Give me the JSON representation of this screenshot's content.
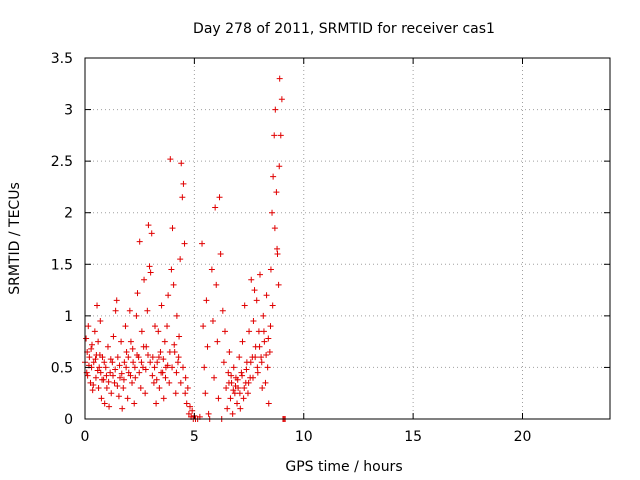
{
  "chart_data": {
    "type": "scatter",
    "title": "Day 278 of 2011, SRMTID for receiver cas1",
    "xlabel": "GPS time / hours",
    "ylabel": "SRMTID / TECUs",
    "xlim": [
      0,
      24
    ],
    "ylim": [
      0,
      3.5
    ],
    "x_ticks": [
      0,
      5,
      10,
      15,
      20
    ],
    "x_tick_labels": [
      "0",
      "5",
      "10",
      "15",
      "20"
    ],
    "y_ticks": [
      0,
      0.5,
      1,
      1.5,
      2,
      2.5,
      3,
      3.5
    ],
    "y_tick_labels": [
      "0",
      "0.5",
      "1",
      "1.5",
      "2",
      "2.5",
      "3",
      "3.5"
    ],
    "grid": true,
    "marker": "plus",
    "color": "#e00000",
    "series": [
      {
        "name": "SRMTID",
        "points": [
          [
            0.0,
            0.55
          ],
          [
            0.05,
            0.78
          ],
          [
            0.1,
            0.65
          ],
          [
            0.12,
            0.42
          ],
          [
            0.15,
            0.9
          ],
          [
            0.2,
            0.6
          ],
          [
            0.25,
            0.35
          ],
          [
            0.3,
            0.5
          ],
          [
            0.32,
            0.72
          ],
          [
            0.35,
            0.28
          ],
          [
            0.4,
            0.55
          ],
          [
            0.45,
            0.85
          ],
          [
            0.5,
            0.4
          ],
          [
            0.52,
            0.62
          ],
          [
            0.55,
            1.1
          ],
          [
            0.6,
            0.75
          ],
          [
            0.62,
            0.3
          ],
          [
            0.65,
            0.5
          ],
          [
            0.7,
            0.95
          ],
          [
            0.72,
            0.45
          ],
          [
            0.75,
            0.2
          ],
          [
            0.8,
            0.6
          ],
          [
            0.85,
            0.38
          ],
          [
            0.9,
            0.15
          ],
          [
            0.95,
            0.5
          ],
          [
            1.0,
            0.3
          ],
          [
            1.05,
            0.7
          ],
          [
            1.1,
            0.12
          ],
          [
            1.15,
            0.45
          ],
          [
            1.2,
            0.25
          ],
          [
            1.25,
            0.55
          ],
          [
            1.3,
            0.8
          ],
          [
            1.35,
            0.35
          ],
          [
            1.4,
            1.05
          ],
          [
            1.45,
            1.15
          ],
          [
            1.5,
            0.6
          ],
          [
            1.55,
            0.22
          ],
          [
            1.6,
            0.4
          ],
          [
            1.65,
            0.75
          ],
          [
            1.7,
            0.1
          ],
          [
            1.75,
            0.3
          ],
          [
            1.8,
            0.55
          ],
          [
            1.85,
            0.9
          ],
          [
            1.9,
            0.65
          ],
          [
            1.95,
            0.2
          ],
          [
            2.0,
            0.45
          ],
          [
            2.05,
            1.05
          ],
          [
            2.1,
            0.75
          ],
          [
            2.15,
            0.35
          ],
          [
            2.2,
            0.55
          ],
          [
            2.25,
            0.15
          ],
          [
            2.3,
            0.4
          ],
          [
            2.35,
            1.0
          ],
          [
            2.4,
            1.22
          ],
          [
            2.45,
            0.6
          ],
          [
            2.5,
            1.72
          ],
          [
            2.55,
            0.3
          ],
          [
            2.6,
            0.85
          ],
          [
            2.65,
            0.5
          ],
          [
            2.7,
            1.35
          ],
          [
            2.75,
            0.25
          ],
          [
            2.8,
            0.7
          ],
          [
            2.85,
            1.05
          ],
          [
            2.9,
            1.88
          ],
          [
            2.95,
            1.48
          ],
          [
            3.0,
            1.42
          ],
          [
            3.05,
            1.8
          ],
          [
            3.1,
            0.6
          ],
          [
            3.15,
            0.35
          ],
          [
            3.2,
            0.9
          ],
          [
            3.25,
            0.15
          ],
          [
            3.3,
            0.55
          ],
          [
            3.35,
            0.85
          ],
          [
            3.4,
            0.3
          ],
          [
            3.45,
            0.65
          ],
          [
            3.5,
            1.1
          ],
          [
            3.55,
            0.45
          ],
          [
            3.6,
            0.2
          ],
          [
            3.65,
            0.75
          ],
          [
            3.7,
            0.5
          ],
          [
            3.75,
            0.9
          ],
          [
            3.8,
            1.2
          ],
          [
            3.85,
            0.35
          ],
          [
            3.9,
            2.52
          ],
          [
            3.95,
            1.45
          ],
          [
            4.0,
            1.85
          ],
          [
            4.05,
            1.3
          ],
          [
            4.1,
            0.65
          ],
          [
            4.15,
            0.25
          ],
          [
            4.2,
            1.0
          ],
          [
            4.25,
            0.55
          ],
          [
            4.3,
            0.8
          ],
          [
            4.35,
            1.55
          ],
          [
            4.4,
            2.48
          ],
          [
            4.45,
            2.15
          ],
          [
            4.5,
            2.28
          ],
          [
            4.55,
            1.7
          ],
          [
            4.6,
            0.4
          ],
          [
            4.65,
            0.15
          ],
          [
            4.7,
            0.3
          ],
          [
            4.75,
            0.05
          ],
          [
            4.8,
            0.12
          ],
          [
            4.85,
            0.02
          ],
          [
            4.9,
            0.08
          ],
          [
            4.95,
            0.0
          ],
          [
            5.0,
            0.03
          ],
          [
            5.05,
            0.0
          ],
          [
            5.15,
            0.0
          ],
          [
            5.25,
            0.02
          ],
          [
            5.35,
            1.7
          ],
          [
            5.4,
            0.9
          ],
          [
            5.45,
            0.5
          ],
          [
            5.5,
            0.25
          ],
          [
            5.55,
            1.15
          ],
          [
            5.6,
            0.7
          ],
          [
            5.65,
            0.05
          ],
          [
            5.7,
            0.0
          ],
          [
            5.8,
            1.45
          ],
          [
            5.85,
            0.95
          ],
          [
            5.9,
            0.4
          ],
          [
            5.95,
            2.05
          ],
          [
            6.0,
            1.3
          ],
          [
            6.05,
            0.75
          ],
          [
            6.1,
            0.2
          ],
          [
            6.15,
            2.15
          ],
          [
            6.2,
            1.6
          ],
          [
            6.25,
            0.0
          ],
          [
            6.3,
            1.05
          ],
          [
            6.35,
            0.55
          ],
          [
            6.4,
            0.85
          ],
          [
            6.45,
            0.3
          ],
          [
            6.5,
            0.1
          ],
          [
            6.55,
            0.45
          ],
          [
            6.6,
            0.65
          ],
          [
            6.65,
            0.2
          ],
          [
            6.7,
            0.35
          ],
          [
            6.75,
            0.05
          ],
          [
            6.8,
            0.5
          ],
          [
            6.85,
            0.25
          ],
          [
            6.9,
            0.4
          ],
          [
            6.95,
            0.15
          ],
          [
            7.0,
            0.3
          ],
          [
            7.05,
            0.6
          ],
          [
            7.1,
            0.1
          ],
          [
            7.15,
            0.45
          ],
          [
            7.2,
            0.75
          ],
          [
            7.25,
            0.2
          ],
          [
            7.3,
            1.1
          ],
          [
            7.35,
            0.35
          ],
          [
            7.4,
            0.55
          ],
          [
            7.45,
            0.25
          ],
          [
            7.5,
            0.85
          ],
          [
            7.55,
            0.4
          ],
          [
            7.6,
            1.35
          ],
          [
            7.65,
            0.6
          ],
          [
            7.7,
            0.95
          ],
          [
            7.75,
            1.25
          ],
          [
            7.8,
            0.7
          ],
          [
            7.85,
            1.15
          ],
          [
            7.9,
            0.45
          ],
          [
            7.95,
            0.85
          ],
          [
            8.0,
            1.4
          ],
          [
            8.05,
            0.6
          ],
          [
            8.1,
            0.3
          ],
          [
            8.15,
            1.0
          ],
          [
            8.2,
            0.75
          ],
          [
            8.25,
            0.35
          ],
          [
            8.3,
            1.2
          ],
          [
            8.35,
            0.5
          ],
          [
            8.4,
            0.15
          ],
          [
            8.45,
            0.65
          ],
          [
            8.5,
            1.45
          ],
          [
            8.55,
            2.0
          ],
          [
            8.6,
            2.35
          ],
          [
            8.65,
            2.75
          ],
          [
            8.7,
            3.0
          ],
          [
            8.75,
            2.2
          ],
          [
            8.8,
            1.6
          ],
          [
            8.85,
            1.3
          ],
          [
            8.9,
            3.3
          ],
          [
            8.95,
            2.75
          ],
          [
            9.0,
            3.1
          ],
          [
            9.05,
            0.0
          ],
          [
            9.1,
            0.0
          ],
          [
            9.15,
            0.0
          ],
          [
            0.08,
            0.45
          ],
          [
            0.18,
            0.52
          ],
          [
            0.28,
            0.68
          ],
          [
            0.38,
            0.33
          ],
          [
            0.48,
            0.58
          ],
          [
            0.58,
            0.47
          ],
          [
            0.68,
            0.62
          ],
          [
            0.78,
            0.38
          ],
          [
            0.88,
            0.55
          ],
          [
            0.98,
            0.42
          ],
          [
            1.08,
            0.36
          ],
          [
            1.18,
            0.58
          ],
          [
            1.28,
            0.42
          ],
          [
            1.38,
            0.48
          ],
          [
            1.48,
            0.32
          ],
          [
            1.58,
            0.52
          ],
          [
            1.68,
            0.44
          ],
          [
            1.78,
            0.38
          ],
          [
            1.88,
            0.5
          ],
          [
            1.98,
            0.6
          ],
          [
            2.08,
            0.42
          ],
          [
            2.18,
            0.68
          ],
          [
            2.28,
            0.5
          ],
          [
            2.38,
            0.62
          ],
          [
            2.48,
            0.45
          ],
          [
            2.58,
            0.55
          ],
          [
            2.68,
            0.7
          ],
          [
            2.78,
            0.48
          ],
          [
            2.88,
            0.62
          ],
          [
            2.98,
            0.55
          ],
          [
            3.08,
            0.42
          ],
          [
            3.18,
            0.5
          ],
          [
            3.28,
            0.38
          ],
          [
            3.38,
            0.6
          ],
          [
            3.48,
            0.45
          ],
          [
            3.58,
            0.58
          ],
          [
            3.68,
            0.4
          ],
          [
            3.78,
            0.52
          ],
          [
            3.88,
            0.65
          ],
          [
            3.98,
            0.5
          ],
          [
            4.08,
            0.72
          ],
          [
            4.18,
            0.45
          ],
          [
            4.28,
            0.6
          ],
          [
            4.38,
            0.35
          ],
          [
            4.48,
            0.5
          ],
          [
            4.58,
            0.25
          ],
          [
            6.58,
            0.35
          ],
          [
            6.68,
            0.42
          ],
          [
            6.78,
            0.28
          ],
          [
            6.88,
            0.32
          ],
          [
            6.98,
            0.38
          ],
          [
            7.08,
            0.25
          ],
          [
            7.18,
            0.42
          ],
          [
            7.28,
            0.3
          ],
          [
            7.38,
            0.48
          ],
          [
            7.48,
            0.35
          ],
          [
            7.58,
            0.55
          ],
          [
            7.68,
            0.4
          ],
          [
            7.78,
            0.6
          ],
          [
            7.88,
            0.5
          ],
          [
            7.98,
            0.7
          ],
          [
            8.08,
            0.55
          ],
          [
            8.18,
            0.85
          ],
          [
            8.28,
            0.62
          ],
          [
            8.38,
            0.78
          ],
          [
            8.48,
            0.9
          ],
          [
            8.58,
            1.1
          ],
          [
            8.68,
            1.85
          ],
          [
            8.78,
            1.65
          ],
          [
            8.88,
            2.45
          ]
        ]
      }
    ]
  }
}
